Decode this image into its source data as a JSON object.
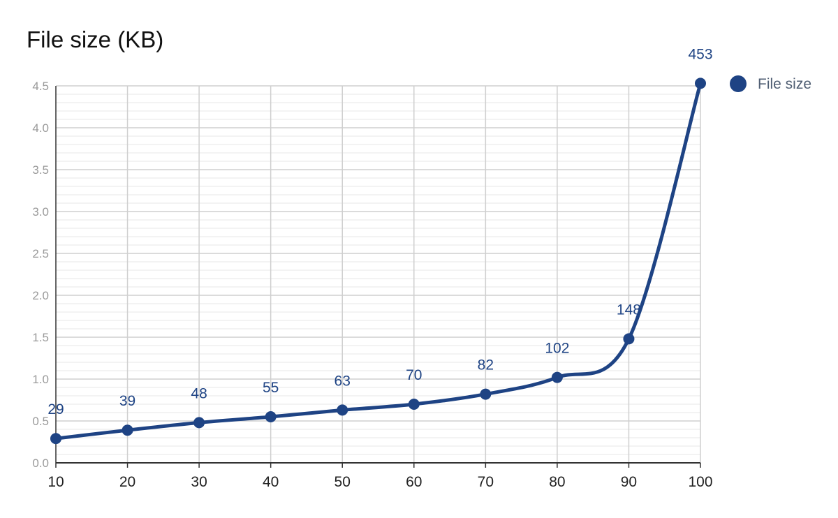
{
  "colors": {
    "series": "#1e4384",
    "grid_major": "#cfcfcf",
    "grid_minor": "#e7e7e7",
    "axis": "#333333"
  },
  "chart_data": {
    "type": "line",
    "title": "File size (KB)",
    "x": [
      10,
      20,
      30,
      40,
      50,
      60,
      70,
      80,
      90,
      100
    ],
    "series": [
      {
        "name": "File size",
        "values": [
          0.29,
          0.39,
          0.48,
          0.55,
          0.63,
          0.7,
          0.82,
          1.02,
          1.48,
          4.53
        ],
        "data_labels": [
          "29",
          "39",
          "48",
          "55",
          "63",
          "70",
          "82",
          "102",
          "148",
          "453"
        ]
      }
    ],
    "xlim": [
      10,
      100
    ],
    "ylim": [
      0,
      4.5
    ],
    "x_ticks": [
      "10",
      "20",
      "30",
      "40",
      "50",
      "60",
      "70",
      "80",
      "90",
      "100"
    ],
    "y_ticks": [
      "0.0",
      "0.5",
      "1.0",
      "1.5",
      "2.0",
      "2.5",
      "3.0",
      "3.5",
      "4.0",
      "4.5"
    ],
    "y_tick_values": [
      0,
      0.5,
      1.0,
      1.5,
      2.0,
      2.5,
      3.0,
      3.5,
      4.0,
      4.5
    ],
    "grid": true,
    "minor_grid": true,
    "smooth": true,
    "legend": {
      "position": "right",
      "entries": [
        "File size"
      ]
    }
  }
}
